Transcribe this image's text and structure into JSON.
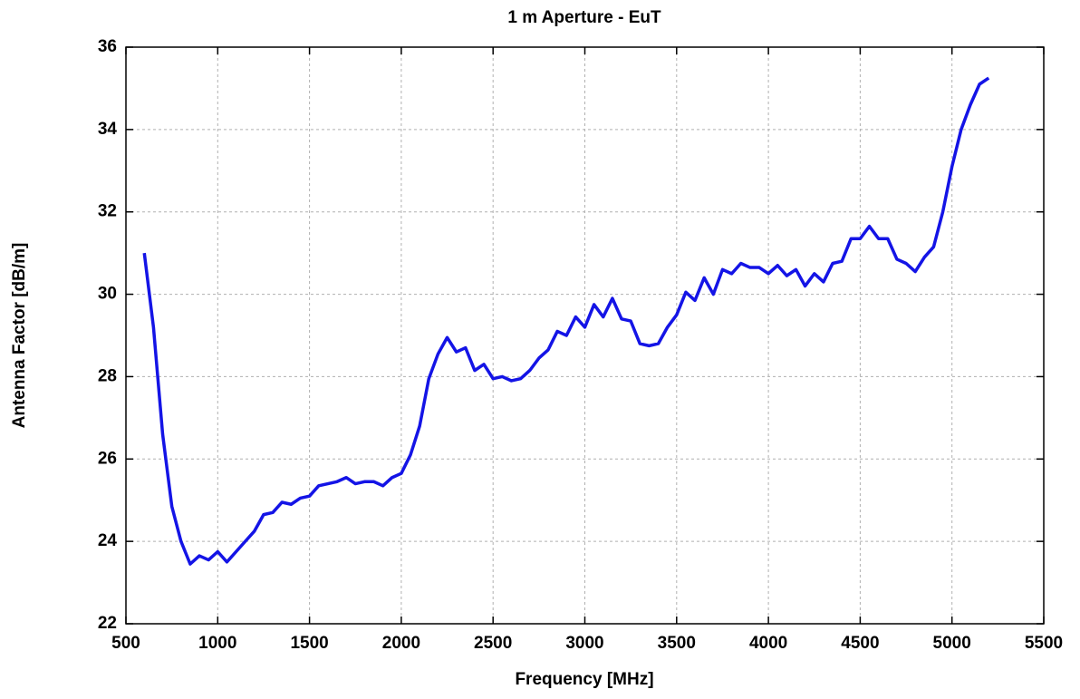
{
  "chart_data": {
    "type": "line",
    "title": "1 m Aperture - EuT",
    "xlabel": "Frequency [MHz]",
    "ylabel": "Antenna Factor [dB/m]",
    "x": [
      600,
      650,
      700,
      750,
      800,
      850,
      900,
      950,
      1000,
      1050,
      1100,
      1150,
      1200,
      1250,
      1300,
      1350,
      1400,
      1450,
      1500,
      1550,
      1600,
      1650,
      1700,
      1750,
      1800,
      1850,
      1900,
      1950,
      2000,
      2050,
      2100,
      2150,
      2200,
      2250,
      2300,
      2350,
      2400,
      2450,
      2500,
      2550,
      2600,
      2650,
      2700,
      2750,
      2800,
      2850,
      2900,
      2950,
      3000,
      3050,
      3100,
      3150,
      3200,
      3250,
      3300,
      3350,
      3400,
      3450,
      3500,
      3550,
      3600,
      3650,
      3700,
      3750,
      3800,
      3850,
      3900,
      3950,
      4000,
      4050,
      4100,
      4150,
      4200,
      4250,
      4300,
      4350,
      4400,
      4450,
      4500,
      4550,
      4600,
      4650,
      4700,
      4750,
      4800,
      4850,
      4900,
      4950,
      5000,
      5050,
      5100,
      5150,
      5200
    ],
    "series": [
      {
        "color": "#1414e6",
        "values": [
          31.0,
          29.2,
          26.6,
          24.85,
          24.0,
          23.45,
          23.65,
          23.55,
          23.75,
          23.5,
          23.75,
          24.0,
          24.25,
          24.65,
          24.7,
          24.95,
          24.9,
          25.05,
          25.1,
          25.35,
          25.4,
          25.45,
          25.55,
          25.4,
          25.45,
          25.45,
          25.35,
          25.55,
          25.65,
          26.1,
          26.8,
          27.95,
          28.55,
          28.95,
          28.6,
          28.7,
          28.15,
          28.3,
          27.95,
          28.0,
          27.9,
          27.95,
          28.15,
          28.45,
          28.65,
          29.1,
          29.0,
          29.45,
          29.2,
          29.75,
          29.45,
          29.9,
          29.4,
          29.35,
          28.8,
          28.75,
          28.8,
          29.2,
          29.5,
          30.05,
          29.85,
          30.4,
          30.0,
          30.6,
          30.5,
          30.75,
          30.65,
          30.65,
          30.5,
          30.7,
          30.45,
          30.6,
          30.2,
          30.5,
          30.3,
          30.75,
          30.8,
          31.35,
          31.35,
          31.65,
          31.35,
          31.35,
          30.85,
          30.75,
          30.55,
          30.9,
          31.15,
          32.0,
          33.1,
          34.0,
          34.6,
          35.1,
          35.25
        ]
      }
    ],
    "xlim": [
      500,
      5500
    ],
    "xticks": [
      500,
      1000,
      1500,
      2000,
      2500,
      3000,
      3500,
      4000,
      4500,
      5000,
      5500
    ],
    "ylim": [
      22,
      36
    ],
    "yticks": [
      22,
      24,
      26,
      28,
      30,
      32,
      34,
      36
    ],
    "grid": true
  }
}
